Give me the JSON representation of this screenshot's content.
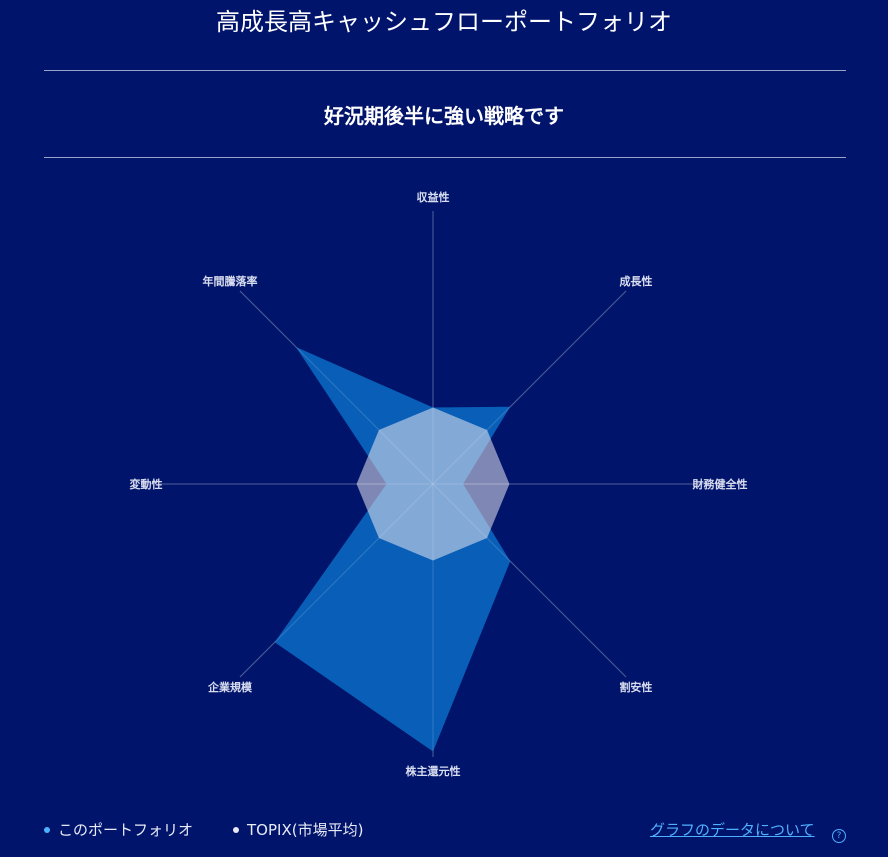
{
  "header": {
    "title": "高成長高キャッシュフローポートフォリオ",
    "subtitle": "好況期後半に強い戦略です"
  },
  "chart_data": {
    "type": "radar",
    "axes": [
      "収益性",
      "成長性",
      "財務健全性",
      "割安性",
      "株主還元性",
      "企業規模",
      "変動性",
      "年間騰落率"
    ],
    "range": [
      0,
      1
    ],
    "series": [
      {
        "name": "このポートフォリオ",
        "values": [
          0.28,
          0.4,
          0.11,
          0.4,
          0.98,
          0.82,
          0.17,
          0.71
        ],
        "color": "#0a6cc4"
      },
      {
        "name": "TOPIX(市場平均)",
        "values": [
          0.28,
          0.28,
          0.28,
          0.28,
          0.28,
          0.28,
          0.28,
          0.28
        ],
        "color": "#e8e8f0"
      }
    ]
  },
  "footer": {
    "link_label": "グラフのデータについて",
    "help_icon": "question-circle-icon",
    "help_glyph": "?"
  }
}
